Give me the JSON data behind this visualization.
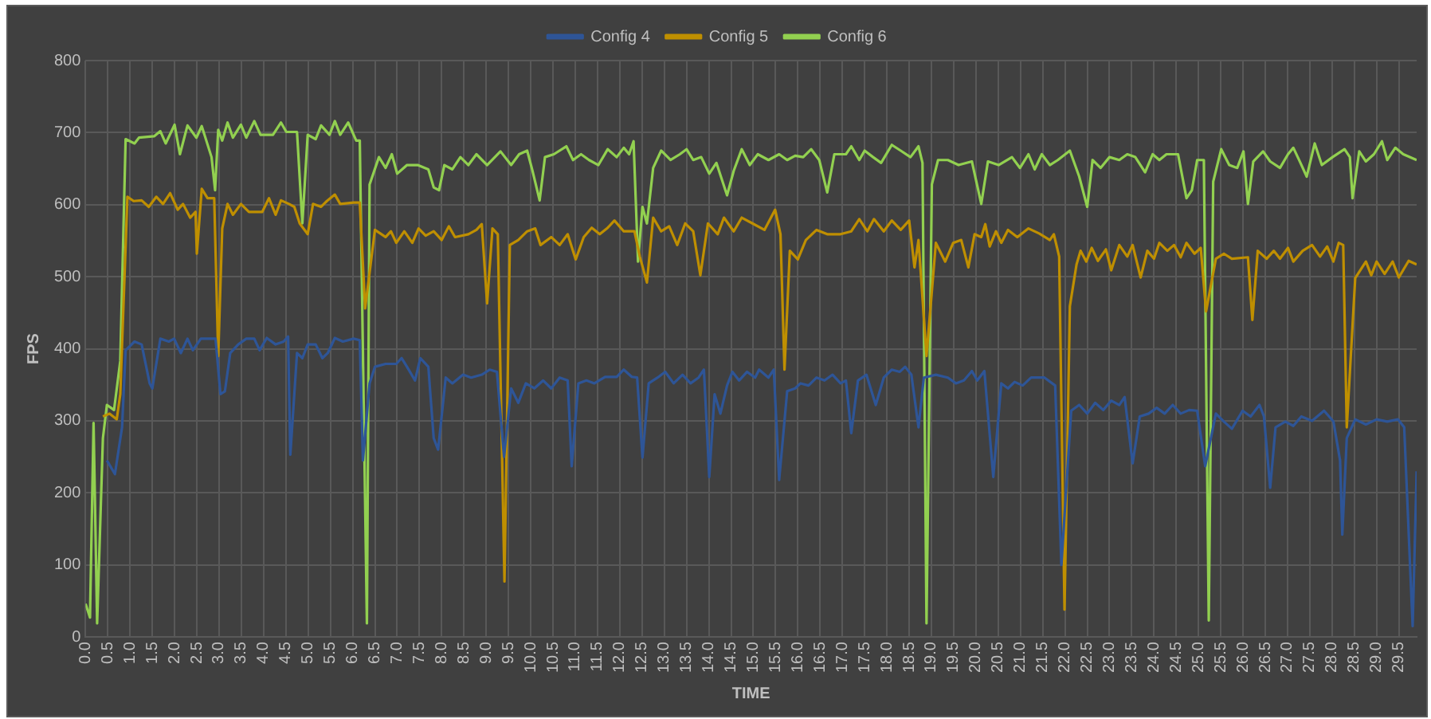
{
  "chart_data": {
    "type": "line",
    "xlabel": "TIME",
    "ylabel": "FPS",
    "legend": "top",
    "grid": true,
    "xlim": [
      0,
      29.9
    ],
    "ylim": [
      0,
      800
    ],
    "yticks": [
      0,
      100,
      200,
      300,
      400,
      500,
      600,
      700,
      800
    ],
    "xticks": [
      {
        "value": 0,
        "label": "0.0"
      },
      {
        "value": 0.5,
        "label": "0.5"
      },
      {
        "value": 1,
        "label": "1.0"
      },
      {
        "value": 1.5,
        "label": "1.5"
      },
      {
        "value": 2,
        "label": "2.0"
      },
      {
        "value": 2.5,
        "label": "2.5"
      },
      {
        "value": 3,
        "label": "3.0"
      },
      {
        "value": 3.5,
        "label": "3.5"
      },
      {
        "value": 4,
        "label": "4.0"
      },
      {
        "value": 4.5,
        "label": "4.5"
      },
      {
        "value": 5,
        "label": "5.0"
      },
      {
        "value": 5.5,
        "label": "5.5"
      },
      {
        "value": 6,
        "label": "6.0"
      },
      {
        "value": 6.5,
        "label": "6.5"
      },
      {
        "value": 7,
        "label": "7.0"
      },
      {
        "value": 7.5,
        "label": "7.5"
      },
      {
        "value": 8,
        "label": "8.0"
      },
      {
        "value": 8.5,
        "label": "8.5"
      },
      {
        "value": 9,
        "label": "9.0"
      },
      {
        "value": 9.5,
        "label": "9.5"
      },
      {
        "value": 10,
        "label": "10.0"
      },
      {
        "value": 10.5,
        "label": "10.5"
      },
      {
        "value": 11,
        "label": "11.0"
      },
      {
        "value": 11.5,
        "label": "11.5"
      },
      {
        "value": 12,
        "label": "12.0"
      },
      {
        "value": 12.5,
        "label": "12.5"
      },
      {
        "value": 13,
        "label": "13.0"
      },
      {
        "value": 13.5,
        "label": "13.5"
      },
      {
        "value": 14,
        "label": "14.0"
      },
      {
        "value": 14.5,
        "label": "14.5"
      },
      {
        "value": 15,
        "label": "15.0"
      },
      {
        "value": 15.5,
        "label": "15.5"
      },
      {
        "value": 16,
        "label": "16.0"
      },
      {
        "value": 16.5,
        "label": "16.5"
      },
      {
        "value": 17,
        "label": "17.0"
      },
      {
        "value": 17.5,
        "label": "17.5"
      },
      {
        "value": 18,
        "label": "18.0"
      },
      {
        "value": 18.5,
        "label": "18.5"
      },
      {
        "value": 19,
        "label": "19.0"
      },
      {
        "value": 19.5,
        "label": "19.5"
      },
      {
        "value": 20,
        "label": "20.0"
      },
      {
        "value": 20.5,
        "label": "20.5"
      },
      {
        "value": 21,
        "label": "21.0"
      },
      {
        "value": 21.5,
        "label": "21.5"
      },
      {
        "value": 22,
        "label": "22.0"
      },
      {
        "value": 22.5,
        "label": "22.5"
      },
      {
        "value": 23,
        "label": "23.0"
      },
      {
        "value": 23.5,
        "label": "23.5"
      },
      {
        "value": 24,
        "label": "24.0"
      },
      {
        "value": 24.5,
        "label": "24.5"
      },
      {
        "value": 25,
        "label": "25.0"
      },
      {
        "value": 25.5,
        "label": "25.5"
      },
      {
        "value": 26,
        "label": "26.0"
      },
      {
        "value": 26.5,
        "label": "26.5"
      },
      {
        "value": 27,
        "label": "27.0"
      },
      {
        "value": 27.5,
        "label": "27.5"
      },
      {
        "value": 28,
        "label": "28.0"
      },
      {
        "value": 28.5,
        "label": "28.5"
      },
      {
        "value": 29,
        "label": "29.0"
      },
      {
        "value": 29.5,
        "label": "29.5"
      }
    ],
    "series": [
      {
        "name": "Config 4",
        "color": "#2e5597",
        "x": [
          0.48,
          0.66,
          0.82,
          0.9,
          1.1,
          1.26,
          1.44,
          1.5,
          1.68,
          1.87,
          1.99,
          2.14,
          2.29,
          2.41,
          2.59,
          2.83,
          2.92,
          3.03,
          3.13,
          3.25,
          3.43,
          3.61,
          3.79,
          3.91,
          4.07,
          4.27,
          4.45,
          4.55,
          4.6,
          4.75,
          4.87,
          4.99,
          5.17,
          5.32,
          5.44,
          5.6,
          5.78,
          6.02,
          6.16,
          6.23,
          6.38,
          6.5,
          6.74,
          6.98,
          7.1,
          7.22,
          7.4,
          7.52,
          7.7,
          7.82,
          7.92,
          8.09,
          8.24,
          8.48,
          8.66,
          8.9,
          9.08,
          9.24,
          9.4,
          9.56,
          9.72,
          9.89,
          10.08,
          10.28,
          10.46,
          10.65,
          10.83,
          10.92,
          11.07,
          11.25,
          11.43,
          11.67,
          11.93,
          12.09,
          12.27,
          12.39,
          12.51,
          12.65,
          12.85,
          13.02,
          13.21,
          13.41,
          13.59,
          13.77,
          13.89,
          14.01,
          14.13,
          14.26,
          14.41,
          14.53,
          14.68,
          14.86,
          15.04,
          15.13,
          15.34,
          15.46,
          15.58,
          15.76,
          15.94,
          16.06,
          16.24,
          16.42,
          16.6,
          16.78,
          16.96,
          17.08,
          17.2,
          17.35,
          17.54,
          17.75,
          17.93,
          18.11,
          18.29,
          18.41,
          18.55,
          18.71,
          18.83,
          19.1,
          19.37,
          19.55,
          19.73,
          19.91,
          20.03,
          20.19,
          20.39,
          20.57,
          20.72,
          20.87,
          21.05,
          21.24,
          21.54,
          21.78,
          21.92,
          22.14,
          22.32,
          22.5,
          22.68,
          22.86,
          23.04,
          23.22,
          23.34,
          23.52,
          23.68,
          23.88,
          24.06,
          24.24,
          24.42,
          24.6,
          24.79,
          24.97,
          25.15,
          25.39,
          25.57,
          25.75,
          25.99,
          26.17,
          26.37,
          26.47,
          26.61,
          26.73,
          26.95,
          27.13,
          27.31,
          27.55,
          27.82,
          28.03,
          28.18,
          28.23,
          28.33,
          28.52,
          28.76,
          29.0,
          29.24,
          29.48,
          29.62,
          29.81,
          29.9
        ],
        "values": [
          245,
          226,
          291,
          398,
          410,
          406,
          352,
          345,
          414,
          410,
          414,
          394,
          414,
          398,
          414,
          414,
          414,
          337,
          341,
          394,
          406,
          414,
          414,
          398,
          415,
          406,
          410,
          417,
          253,
          394,
          387,
          406,
          406,
          387,
          394,
          415,
          410,
          414,
          412,
          245,
          352,
          375,
          379,
          379,
          387,
          375,
          356,
          387,
          375,
          276,
          260,
          360,
          352,
          364,
          360,
          364,
          371,
          368,
          250,
          345,
          325,
          352,
          345,
          356,
          345,
          360,
          356,
          237,
          352,
          356,
          352,
          361,
          361,
          371,
          361,
          360,
          249,
          352,
          360,
          368,
          352,
          364,
          352,
          360,
          371,
          222,
          337,
          310,
          349,
          368,
          356,
          368,
          360,
          371,
          360,
          371,
          218,
          341,
          345,
          352,
          349,
          360,
          356,
          364,
          352,
          356,
          283,
          356,
          364,
          322,
          360,
          371,
          368,
          375,
          364,
          291,
          360,
          364,
          360,
          352,
          356,
          369,
          356,
          369,
          222,
          352,
          345,
          354,
          349,
          360,
          360,
          349,
          100,
          314,
          322,
          310,
          325,
          315,
          328,
          322,
          333,
          241,
          306,
          310,
          318,
          310,
          322,
          310,
          315,
          314,
          237,
          310,
          299,
          289,
          314,
          306,
          322,
          306,
          207,
          291,
          299,
          293,
          306,
          300,
          314,
          299,
          245,
          142,
          276,
          302,
          295,
          302,
          299,
          302,
          291,
          15,
          230
        ]
      },
      {
        "name": "Config 5",
        "color": "#bf8f00",
        "x": [
          0.39,
          0.54,
          0.7,
          0.78,
          0.94,
          1.08,
          1.26,
          1.42,
          1.59,
          1.74,
          1.9,
          2.07,
          2.19,
          2.35,
          2.47,
          2.5,
          2.61,
          2.74,
          2.89,
          2.98,
          3.07,
          3.19,
          3.31,
          3.49,
          3.67,
          3.97,
          4.12,
          4.27,
          4.39,
          4.57,
          4.69,
          4.81,
          4.99,
          5.11,
          5.29,
          5.42,
          5.6,
          5.72,
          6.02,
          6.16,
          6.28,
          6.5,
          6.74,
          6.86,
          6.98,
          7.16,
          7.34,
          7.48,
          7.64,
          7.82,
          8.0,
          8.16,
          8.3,
          8.6,
          8.78,
          8.9,
          9.02,
          9.14,
          9.26,
          9.41,
          9.53,
          9.72,
          9.92,
          10.1,
          10.22,
          10.46,
          10.65,
          10.83,
          11.01,
          11.19,
          11.37,
          11.55,
          11.73,
          11.88,
          12.09,
          12.33,
          12.45,
          12.61,
          12.75,
          12.93,
          13.11,
          13.29,
          13.47,
          13.65,
          13.81,
          13.98,
          14.2,
          14.34,
          14.56,
          14.74,
          14.98,
          15.25,
          15.49,
          15.61,
          15.7,
          15.82,
          16.0,
          16.18,
          16.42,
          16.66,
          16.96,
          17.2,
          17.38,
          17.56,
          17.71,
          17.93,
          18.11,
          18.31,
          18.5,
          18.62,
          18.71,
          18.89,
          19.1,
          19.31,
          19.49,
          19.67,
          19.83,
          19.97,
          20.12,
          20.21,
          20.31,
          20.45,
          20.57,
          20.72,
          20.93,
          21.18,
          21.42,
          21.66,
          21.75,
          21.87,
          21.99,
          22.11,
          22.26,
          22.35,
          22.48,
          22.6,
          22.74,
          22.92,
          23.04,
          23.22,
          23.4,
          23.52,
          23.7,
          23.85,
          24.0,
          24.12,
          24.3,
          24.45,
          24.6,
          24.73,
          24.91,
          25.05,
          25.17,
          25.39,
          25.57,
          25.75,
          26.11,
          26.21,
          26.33,
          26.53,
          26.69,
          26.83,
          27.01,
          27.13,
          27.34,
          27.55,
          27.73,
          27.89,
          28.03,
          28.15,
          28.25,
          28.33,
          28.52,
          28.76,
          28.88,
          29.0,
          29.18,
          29.36,
          29.5,
          29.72,
          29.9
        ],
        "values": [
          306,
          310,
          302,
          337,
          611,
          605,
          606,
          597,
          611,
          601,
          616,
          593,
          601,
          582,
          590,
          532,
          622,
          609,
          609,
          390,
          567,
          601,
          586,
          601,
          590,
          590,
          609,
          586,
          606,
          601,
          597,
          574,
          559,
          601,
          597,
          605,
          614,
          601,
          603,
          603,
          456,
          565,
          555,
          563,
          547,
          563,
          547,
          567,
          557,
          563,
          551,
          570,
          555,
          559,
          565,
          573,
          463,
          567,
          559,
          77,
          544,
          551,
          563,
          567,
          544,
          555,
          544,
          559,
          524,
          555,
          568,
          559,
          568,
          578,
          563,
          563,
          528,
          492,
          582,
          563,
          570,
          544,
          574,
          563,
          502,
          574,
          559,
          582,
          563,
          582,
          574,
          565,
          593,
          559,
          371,
          536,
          524,
          551,
          565,
          559,
          559,
          563,
          580,
          563,
          580,
          563,
          578,
          565,
          578,
          513,
          551,
          390,
          547,
          521,
          547,
          551,
          513,
          559,
          555,
          573,
          542,
          563,
          547,
          565,
          555,
          567,
          560,
          551,
          559,
          528,
          38,
          459,
          517,
          536,
          521,
          540,
          522,
          538,
          509,
          544,
          528,
          544,
          499,
          536,
          525,
          547,
          536,
          544,
          527,
          547,
          532,
          540,
          452,
          525,
          532,
          525,
          527,
          440,
          536,
          525,
          536,
          525,
          540,
          521,
          536,
          544,
          528,
          542,
          521,
          547,
          544,
          291,
          498,
          521,
          502,
          521,
          504,
          521,
          499,
          522,
          517
        ]
      },
      {
        "name": "Config 6",
        "color": "#92d050",
        "x": [
          0,
          0.1,
          0.18,
          0.26,
          0.39,
          0.48,
          0.64,
          0.78,
          0.9,
          1.1,
          1.2,
          1.54,
          1.68,
          1.8,
          2.0,
          2.12,
          2.29,
          2.49,
          2.61,
          2.83,
          2.91,
          2.98,
          3.07,
          3.19,
          3.31,
          3.49,
          3.61,
          3.79,
          3.93,
          4.21,
          4.39,
          4.51,
          4.75,
          4.87,
          4.99,
          5.17,
          5.29,
          5.48,
          5.6,
          5.72,
          5.9,
          6.08,
          6.16,
          6.32,
          6.38,
          6.59,
          6.74,
          6.88,
          7.0,
          7.22,
          7.46,
          7.7,
          7.82,
          7.94,
          8.06,
          8.24,
          8.42,
          8.6,
          8.78,
          9.02,
          9.32,
          9.56,
          9.74,
          9.92,
          10.04,
          10.2,
          10.32,
          10.52,
          10.8,
          10.95,
          11.13,
          11.31,
          11.52,
          11.73,
          11.93,
          12.09,
          12.21,
          12.31,
          12.41,
          12.51,
          12.61,
          12.75,
          12.93,
          13.14,
          13.35,
          13.5,
          13.65,
          13.83,
          14.01,
          14.17,
          14.41,
          14.56,
          14.74,
          14.92,
          15.1,
          15.34,
          15.58,
          15.76,
          15.94,
          16.12,
          16.3,
          16.48,
          16.66,
          16.82,
          17.08,
          17.2,
          17.38,
          17.5,
          17.69,
          17.87,
          18.11,
          18.31,
          18.53,
          18.71,
          18.8,
          18.89,
          19.01,
          19.15,
          19.37,
          19.61,
          19.91,
          20.12,
          20.27,
          20.51,
          20.81,
          20.99,
          21.18,
          21.32,
          21.48,
          21.66,
          21.84,
          22.11,
          22.32,
          22.5,
          22.62,
          22.8,
          23.0,
          23.22,
          23.4,
          23.58,
          23.8,
          23.97,
          24.12,
          24.28,
          24.54,
          24.73,
          24.85,
          24.97,
          25.12,
          25.23,
          25.33,
          25.51,
          25.69,
          25.87,
          26.01,
          26.11,
          26.23,
          26.45,
          26.61,
          26.83,
          27.01,
          27.13,
          27.29,
          27.43,
          27.61,
          27.77,
          28.01,
          28.28,
          28.4,
          28.46,
          28.61,
          28.76,
          28.94,
          29.12,
          29.24,
          29.42,
          29.6,
          29.9
        ],
        "values": [
          46,
          27,
          297,
          19,
          276,
          322,
          315,
          383,
          691,
          685,
          693,
          695,
          702,
          685,
          711,
          670,
          710,
          693,
          709,
          666,
          620,
          704,
          689,
          714,
          693,
          711,
          693,
          716,
          697,
          697,
          714,
          701,
          701,
          574,
          697,
          691,
          710,
          697,
          716,
          697,
          714,
          689,
          689,
          19,
          628,
          666,
          651,
          670,
          643,
          655,
          655,
          649,
          624,
          620,
          655,
          649,
          666,
          655,
          670,
          655,
          674,
          655,
          670,
          675,
          647,
          606,
          666,
          670,
          681,
          662,
          670,
          662,
          655,
          677,
          666,
          679,
          670,
          688,
          521,
          597,
          574,
          651,
          675,
          662,
          670,
          677,
          662,
          666,
          643,
          658,
          613,
          647,
          677,
          655,
          670,
          662,
          670,
          662,
          668,
          666,
          677,
          662,
          617,
          670,
          670,
          681,
          662,
          675,
          666,
          658,
          683,
          675,
          666,
          681,
          658,
          19,
          628,
          662,
          662,
          655,
          660,
          601,
          660,
          655,
          666,
          651,
          670,
          649,
          670,
          655,
          662,
          675,
          639,
          597,
          662,
          651,
          666,
          662,
          670,
          666,
          645,
          670,
          662,
          670,
          670,
          609,
          620,
          662,
          662,
          23,
          632,
          677,
          655,
          651,
          674,
          601,
          660,
          674,
          660,
          651,
          670,
          679,
          658,
          639,
          685,
          655,
          666,
          677,
          666,
          609,
          674,
          660,
          670,
          688,
          662,
          679,
          670,
          662
        ]
      }
    ]
  }
}
